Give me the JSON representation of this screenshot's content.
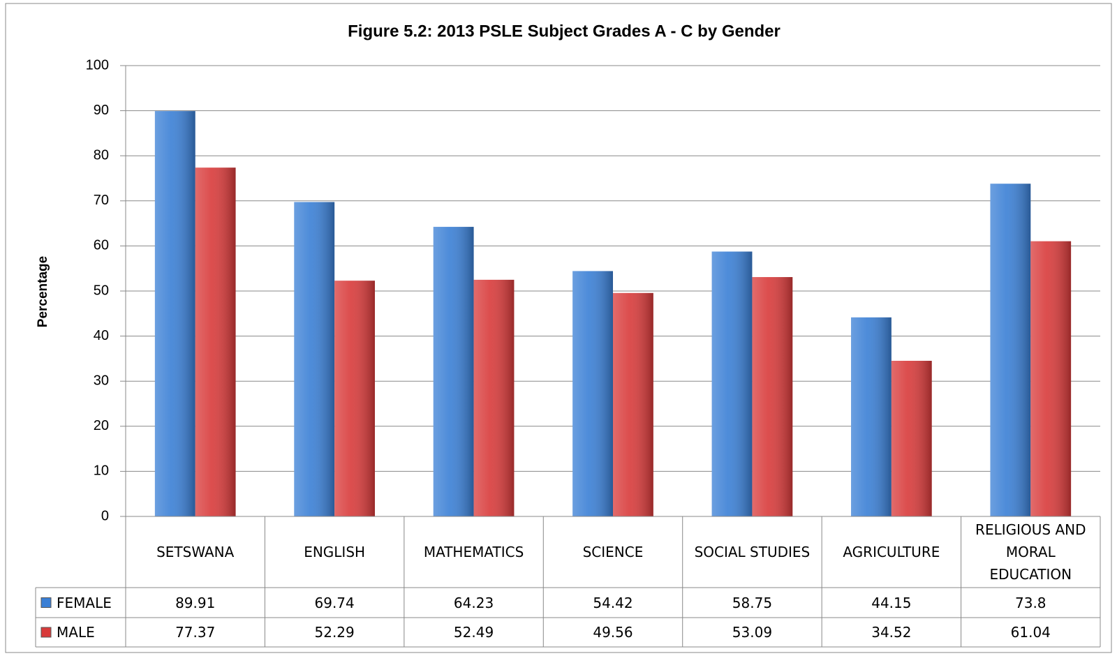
{
  "chart_data": {
    "type": "bar",
    "title": "Figure 5.2: 2013 PSLE Subject Grades A - C by Gender",
    "ylabel": "Percentage",
    "categories": [
      "SETSWANA",
      "ENGLISH",
      "MATHEMATICS",
      "SCIENCE",
      "SOCIAL STUDIES",
      "AGRICULTURE",
      "RELIGIOUS AND MORAL EDUCATION"
    ],
    "series": [
      {
        "name": "FEMALE",
        "color": "#3a7fd5",
        "values": [
          89.91,
          69.74,
          64.23,
          54.42,
          58.75,
          44.15,
          73.8
        ]
      },
      {
        "name": "MALE",
        "color": "#d83a3a",
        "values": [
          77.37,
          52.29,
          52.49,
          49.56,
          53.09,
          34.52,
          61.04
        ]
      }
    ],
    "ylim": [
      0,
      100
    ],
    "yticks": [
      0,
      10,
      20,
      30,
      40,
      50,
      60,
      70,
      80,
      90,
      100
    ],
    "grid": true,
    "data_table": true
  }
}
